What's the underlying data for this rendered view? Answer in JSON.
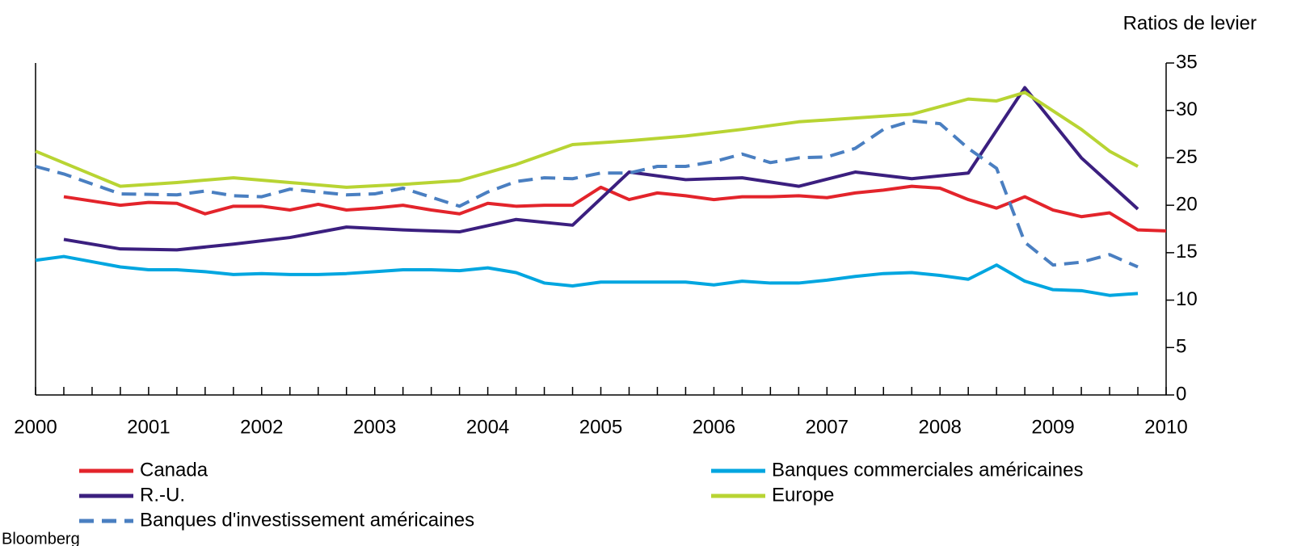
{
  "chart_data": {
    "type": "line",
    "y_label": "Ratios de levier",
    "source": "Bloomberg",
    "xlim": [
      2000,
      2010
    ],
    "xticks": [
      2000,
      2001,
      2002,
      2003,
      2004,
      2005,
      2006,
      2007,
      2008,
      2009,
      2010
    ],
    "ylim": [
      0,
      35
    ],
    "yticks": [
      0,
      5,
      10,
      15,
      20,
      25,
      30,
      35
    ],
    "y_axis_side": "right",
    "grid": false,
    "legend": "bottom",
    "series": [
      {
        "name": "Canada",
        "color": "#e3242b",
        "style": "solid",
        "x": [
          2000.25,
          2000.75,
          2001,
          2001.25,
          2001.5,
          2001.75,
          2002,
          2002.25,
          2002.5,
          2002.75,
          2003,
          2003.25,
          2003.5,
          2003.75,
          2004,
          2004.25,
          2004.5,
          2004.75,
          2005,
          2005.25,
          2005.5,
          2005.75,
          2006,
          2006.25,
          2006.5,
          2006.75,
          2007,
          2007.25,
          2007.5,
          2007.75,
          2008,
          2008.25,
          2008.5,
          2008.75,
          2009,
          2009.25,
          2009.5,
          2009.75,
          2010
        ],
        "values": [
          20.9,
          20.0,
          20.3,
          20.2,
          19.1,
          19.9,
          19.9,
          19.5,
          20.1,
          19.5,
          19.7,
          20.0,
          19.5,
          19.1,
          20.2,
          19.9,
          20.0,
          20.0,
          21.9,
          20.6,
          21.3,
          21.0,
          20.6,
          20.9,
          20.9,
          21.0,
          20.8,
          21.3,
          21.6,
          22.0,
          21.8,
          20.6,
          19.7,
          20.9,
          19.5,
          18.8,
          19.2,
          17.4,
          17.3
        ]
      },
      {
        "name": "Banques commerciales américaines",
        "color": "#00a6e0",
        "style": "solid",
        "x": [
          2000,
          2000.25,
          2000.75,
          2001,
          2001.25,
          2001.5,
          2001.75,
          2002,
          2002.25,
          2002.5,
          2002.75,
          2003,
          2003.25,
          2003.5,
          2003.75,
          2004,
          2004.25,
          2004.5,
          2004.75,
          2005,
          2005.25,
          2005.5,
          2005.75,
          2006,
          2006.25,
          2006.5,
          2006.75,
          2007,
          2007.25,
          2007.5,
          2007.75,
          2008,
          2008.25,
          2008.5,
          2008.75,
          2009,
          2009.25,
          2009.5,
          2009.75
        ],
        "values": [
          14.2,
          14.6,
          13.5,
          13.2,
          13.2,
          13.0,
          12.7,
          12.8,
          12.7,
          12.7,
          12.8,
          13.0,
          13.2,
          13.2,
          13.1,
          13.4,
          12.9,
          11.8,
          11.5,
          11.9,
          11.9,
          11.9,
          11.9,
          11.6,
          12.0,
          11.8,
          11.8,
          12.1,
          12.5,
          12.8,
          12.9,
          12.6,
          12.2,
          13.7,
          12.0,
          11.1,
          11.0,
          10.5,
          10.7
        ]
      },
      {
        "name": "R.-U.",
        "color": "#3b1f7f",
        "style": "solid",
        "x": [
          2000.25,
          2000.75,
          2001.25,
          2001.75,
          2002.25,
          2002.75,
          2003.25,
          2003.75,
          2004.25,
          2004.75,
          2005.25,
          2005.75,
          2006.25,
          2006.75,
          2007.25,
          2007.75,
          2008.25,
          2008.75,
          2009.25,
          2009.75
        ],
        "values": [
          16.4,
          15.4,
          15.3,
          15.9,
          16.6,
          17.7,
          17.4,
          17.2,
          18.5,
          17.9,
          23.5,
          22.7,
          22.9,
          22.0,
          23.5,
          22.8,
          23.4,
          32.4,
          25.0,
          19.6
        ]
      },
      {
        "name": "Europe",
        "color": "#b8d433",
        "style": "solid",
        "x": [
          2000,
          2000.75,
          2001.25,
          2001.75,
          2002.25,
          2002.75,
          2003.25,
          2003.75,
          2004.25,
          2004.75,
          2005.25,
          2005.75,
          2006.25,
          2006.75,
          2007.25,
          2007.75,
          2008.25,
          2008.5,
          2008.75,
          2009.25,
          2009.5,
          2009.75
        ],
        "values": [
          25.7,
          22.0,
          22.4,
          22.9,
          22.4,
          21.9,
          22.2,
          22.6,
          24.3,
          26.4,
          26.8,
          27.3,
          28.0,
          28.8,
          29.2,
          29.6,
          31.2,
          31.0,
          31.9,
          28.0,
          25.7,
          24.1
        ]
      },
      {
        "name": "Banques d'investissement américaines",
        "color": "#4a7fc1",
        "style": "dashed",
        "x": [
          2000,
          2000.25,
          2000.75,
          2001.25,
          2001.5,
          2001.75,
          2002,
          2002.25,
          2002.75,
          2003,
          2003.25,
          2003.75,
          2004,
          2004.25,
          2004.5,
          2004.75,
          2005,
          2005.25,
          2005.5,
          2005.75,
          2006,
          2006.25,
          2006.5,
          2006.75,
          2007,
          2007.25,
          2007.5,
          2007.75,
          2008,
          2008.25,
          2008.5,
          2008.75,
          2009,
          2009.25,
          2009.5,
          2009.75
        ],
        "values": [
          24.1,
          23.3,
          21.2,
          21.1,
          21.5,
          21.0,
          20.9,
          21.7,
          21.1,
          21.2,
          21.8,
          19.9,
          21.4,
          22.5,
          22.9,
          22.8,
          23.4,
          23.4,
          24.1,
          24.1,
          24.6,
          25.4,
          24.5,
          25.0,
          25.1,
          26.0,
          28.0,
          28.9,
          28.6,
          26.0,
          23.9,
          16.1,
          13.7,
          14.0,
          14.8,
          13.5
        ]
      }
    ]
  }
}
